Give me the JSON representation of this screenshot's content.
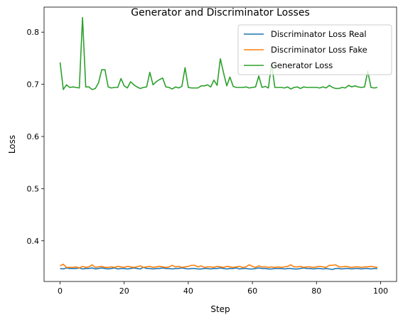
{
  "chart_data": {
    "type": "line",
    "title": "Generator and Discriminator Losses",
    "xlabel": "Step",
    "ylabel": "Loss",
    "xlim": [
      -5,
      105
    ],
    "ylim": [
      0.322,
      0.848
    ],
    "xticks": [
      0,
      20,
      40,
      60,
      80,
      100
    ],
    "yticks": [
      0.4,
      0.5,
      0.6,
      0.7,
      0.8
    ],
    "xtick_labels": [
      "0",
      "20",
      "40",
      "60",
      "80",
      "100"
    ],
    "ytick_labels": [
      "0.4",
      "0.5",
      "0.6",
      "0.7",
      "0.8"
    ],
    "grid": false,
    "legend_position": "top-right",
    "x": [
      0,
      1,
      2,
      3,
      4,
      5,
      6,
      7,
      8,
      9,
      10,
      11,
      12,
      13,
      14,
      15,
      16,
      17,
      18,
      19,
      20,
      21,
      22,
      23,
      24,
      25,
      26,
      27,
      28,
      29,
      30,
      31,
      32,
      33,
      34,
      35,
      36,
      37,
      38,
      39,
      40,
      41,
      42,
      43,
      44,
      45,
      46,
      47,
      48,
      49,
      50,
      51,
      52,
      53,
      54,
      55,
      56,
      57,
      58,
      59,
      60,
      61,
      62,
      63,
      64,
      65,
      66,
      67,
      68,
      69,
      70,
      71,
      72,
      73,
      74,
      75,
      76,
      77,
      78,
      79,
      80,
      81,
      82,
      83,
      84,
      85,
      86,
      87,
      88,
      89,
      90,
      91,
      92,
      93,
      94,
      95,
      96,
      97,
      98,
      99
    ],
    "series": [
      {
        "name": "Discriminator Loss Real",
        "color": "#1f77b4",
        "values": [
          0.347,
          0.346,
          0.348,
          0.347,
          0.347,
          0.347,
          0.348,
          0.346,
          0.347,
          0.347,
          0.348,
          0.346,
          0.347,
          0.348,
          0.347,
          0.346,
          0.347,
          0.348,
          0.346,
          0.347,
          0.347,
          0.346,
          0.347,
          0.348,
          0.347,
          0.346,
          0.349,
          0.347,
          0.347,
          0.346,
          0.347,
          0.347,
          0.348,
          0.347,
          0.347,
          0.346,
          0.347,
          0.347,
          0.348,
          0.347,
          0.346,
          0.347,
          0.347,
          0.346,
          0.346,
          0.347,
          0.347,
          0.346,
          0.347,
          0.347,
          0.348,
          0.347,
          0.346,
          0.347,
          0.347,
          0.348,
          0.346,
          0.347,
          0.347,
          0.346,
          0.346,
          0.347,
          0.348,
          0.347,
          0.347,
          0.346,
          0.346,
          0.347,
          0.347,
          0.347,
          0.346,
          0.347,
          0.347,
          0.346,
          0.346,
          0.347,
          0.348,
          0.347,
          0.347,
          0.346,
          0.347,
          0.347,
          0.346,
          0.347,
          0.346,
          0.345,
          0.347,
          0.347,
          0.346,
          0.347,
          0.347,
          0.346,
          0.347,
          0.347,
          0.346,
          0.347,
          0.347,
          0.346,
          0.347,
          0.347
        ]
      },
      {
        "name": "Discriminator Loss Fake",
        "color": "#ff7f0e",
        "values": [
          0.352,
          0.355,
          0.349,
          0.349,
          0.349,
          0.35,
          0.348,
          0.351,
          0.349,
          0.35,
          0.354,
          0.349,
          0.35,
          0.351,
          0.349,
          0.349,
          0.35,
          0.349,
          0.351,
          0.35,
          0.349,
          0.351,
          0.35,
          0.349,
          0.35,
          0.352,
          0.349,
          0.35,
          0.351,
          0.349,
          0.35,
          0.351,
          0.35,
          0.349,
          0.35,
          0.353,
          0.35,
          0.351,
          0.349,
          0.35,
          0.351,
          0.353,
          0.353,
          0.35,
          0.352,
          0.349,
          0.35,
          0.35,
          0.349,
          0.351,
          0.35,
          0.349,
          0.351,
          0.35,
          0.349,
          0.35,
          0.351,
          0.349,
          0.35,
          0.354,
          0.351,
          0.349,
          0.352,
          0.35,
          0.35,
          0.349,
          0.35,
          0.349,
          0.35,
          0.349,
          0.35,
          0.351,
          0.354,
          0.35,
          0.35,
          0.351,
          0.349,
          0.35,
          0.35,
          0.349,
          0.35,
          0.351,
          0.35,
          0.349,
          0.353,
          0.353,
          0.354,
          0.35,
          0.35,
          0.351,
          0.35,
          0.349,
          0.35,
          0.35,
          0.349,
          0.35,
          0.35,
          0.351,
          0.35,
          0.349
        ]
      },
      {
        "name": "Generator Loss",
        "color": "#2ca02c",
        "values": [
          0.742,
          0.69,
          0.699,
          0.694,
          0.695,
          0.694,
          0.693,
          0.828,
          0.695,
          0.695,
          0.69,
          0.692,
          0.703,
          0.728,
          0.728,
          0.695,
          0.693,
          0.694,
          0.694,
          0.711,
          0.697,
          0.693,
          0.705,
          0.699,
          0.695,
          0.692,
          0.694,
          0.695,
          0.723,
          0.699,
          0.705,
          0.709,
          0.712,
          0.695,
          0.694,
          0.691,
          0.695,
          0.693,
          0.696,
          0.732,
          0.694,
          0.693,
          0.693,
          0.693,
          0.697,
          0.697,
          0.699,
          0.695,
          0.708,
          0.698,
          0.749,
          0.722,
          0.697,
          0.714,
          0.696,
          0.694,
          0.694,
          0.694,
          0.695,
          0.693,
          0.694,
          0.695,
          0.716,
          0.694,
          0.696,
          0.693,
          0.74,
          0.694,
          0.694,
          0.694,
          0.693,
          0.695,
          0.691,
          0.694,
          0.695,
          0.692,
          0.695,
          0.694,
          0.694,
          0.694,
          0.694,
          0.693,
          0.695,
          0.693,
          0.698,
          0.694,
          0.692,
          0.692,
          0.694,
          0.693,
          0.698,
          0.695,
          0.697,
          0.695,
          0.694,
          0.695,
          0.725,
          0.694,
          0.693,
          0.694
        ]
      }
    ]
  }
}
